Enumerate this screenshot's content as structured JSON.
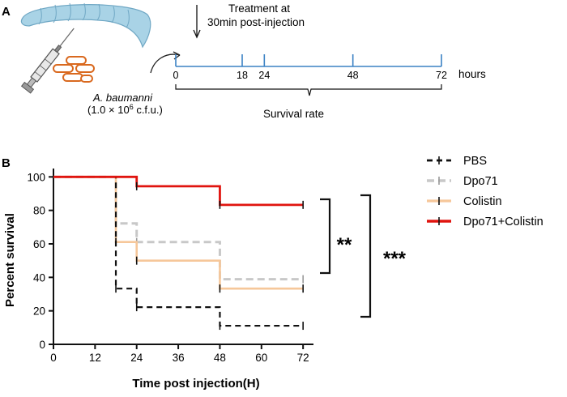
{
  "panel_a": {
    "label": "A",
    "treatment_line1": "Treatment at",
    "treatment_line2": "30min post-injection",
    "timeline_ticks": [
      "0",
      "18",
      "24",
      "48",
      "72"
    ],
    "timeline_values": [
      0,
      18,
      24,
      48,
      72
    ],
    "hours_label": "hours",
    "organism": "A. baumanni",
    "dose_prefix": "(1.0 × 10",
    "dose_exp": "6",
    "dose_suffix": " c.f.u.)",
    "survival_rate_label": "Survival rate"
  },
  "panel_b": {
    "label": "B",
    "significance_inner": "**",
    "significance_outer": "***"
  },
  "colors": {
    "PBS": "#111111",
    "Dpo71": "#c8c8c8",
    "Colistin": "#f6c79a",
    "Dpo71+Colistin": "#e0140f",
    "timeline": "#3b82c4",
    "larva": "#a9d3e6",
    "bacteria": "#d9691f"
  },
  "chart_data": {
    "type": "line",
    "subtype": "kaplan-meier-step",
    "xlabel": "Time post injection(H)",
    "ylabel": "Percent survival",
    "xlim": [
      0,
      75
    ],
    "ylim": [
      0,
      105
    ],
    "xticks": [
      0,
      12,
      24,
      36,
      48,
      60,
      72
    ],
    "yticks": [
      0,
      20,
      40,
      60,
      80,
      100
    ],
    "xtick_labels": [
      "0",
      "12",
      "24",
      "36",
      "48",
      "60",
      "72"
    ],
    "ytick_labels": [
      "0",
      "20",
      "40",
      "60",
      "80",
      "100"
    ],
    "legend_position": "right",
    "series": [
      {
        "name": "PBS",
        "style": "dashed",
        "x": [
          0,
          18,
          18,
          24,
          24,
          48,
          48,
          72
        ],
        "y": [
          100,
          100,
          33.3,
          33.3,
          22.2,
          22.2,
          11.1,
          11.1
        ]
      },
      {
        "name": "Dpo71",
        "style": "dashed",
        "x": [
          0,
          18,
          18,
          24,
          24,
          48,
          48,
          72
        ],
        "y": [
          100,
          100,
          72.2,
          72.2,
          61.1,
          61.1,
          38.9,
          38.9
        ]
      },
      {
        "name": "Colistin",
        "style": "solid",
        "x": [
          0,
          18,
          18,
          24,
          24,
          48,
          48,
          72
        ],
        "y": [
          100,
          100,
          61.1,
          61.1,
          50,
          50,
          33.3,
          33.3
        ]
      },
      {
        "name": "Dpo71+Colistin",
        "style": "solid",
        "x": [
          0,
          24,
          24,
          48,
          48,
          72
        ],
        "y": [
          100,
          100,
          94.4,
          94.4,
          83.3,
          83.3
        ]
      }
    ]
  }
}
